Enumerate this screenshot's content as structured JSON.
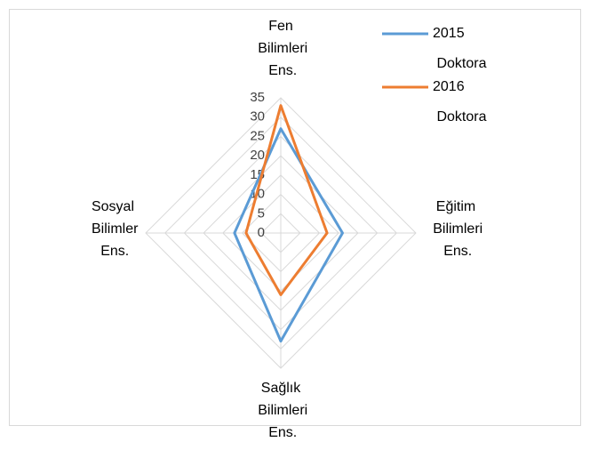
{
  "chart_data": {
    "type": "radar",
    "categories": [
      "Fen Bilimleri Ens.",
      "Eğitim Bilimleri Ens.",
      "Sağlık Bilimleri Ens.",
      "Sosyal Bilimler Ens."
    ],
    "series": [
      {
        "name": "2015 Doktora",
        "color": "#5b9bd5",
        "values": [
          27,
          16,
          28,
          12
        ]
      },
      {
        "name": "2016 Doktora",
        "color": "#ed7d31",
        "values": [
          33,
          12,
          16,
          9
        ]
      }
    ],
    "ylim": [
      0,
      35
    ],
    "yticks": [
      0,
      5,
      10,
      15,
      20,
      25,
      30,
      35
    ],
    "grid": true,
    "legend": "top-right"
  }
}
